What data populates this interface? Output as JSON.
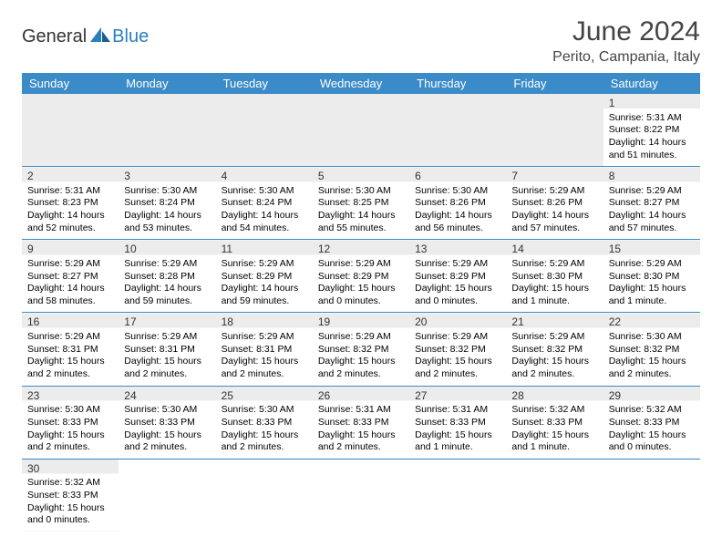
{
  "logo": {
    "general": "General",
    "blue": "Blue"
  },
  "title": "June 2024",
  "location": "Perito, Campania, Italy",
  "colors": {
    "header_bg": "#3b8bc8",
    "header_text": "#ffffff",
    "shade_bg": "#ececec",
    "border": "#3b8bc8",
    "logo_blue": "#2a7fbf",
    "text": "#000000"
  },
  "typography": {
    "title_fontsize": 30,
    "location_fontsize": 16,
    "dayheader_fontsize": 13,
    "daynum_fontsize": 12,
    "body_fontsize": 10.5
  },
  "day_headers": [
    "Sunday",
    "Monday",
    "Tuesday",
    "Wednesday",
    "Thursday",
    "Friday",
    "Saturday"
  ],
  "weeks": [
    [
      {
        "empty": true
      },
      {
        "empty": true
      },
      {
        "empty": true
      },
      {
        "empty": true
      },
      {
        "empty": true
      },
      {
        "empty": true
      },
      {
        "num": "1",
        "sunrise": "Sunrise: 5:31 AM",
        "sunset": "Sunset: 8:22 PM",
        "daylight": "Daylight: 14 hours and 51 minutes."
      }
    ],
    [
      {
        "num": "2",
        "sunrise": "Sunrise: 5:31 AM",
        "sunset": "Sunset: 8:23 PM",
        "daylight": "Daylight: 14 hours and 52 minutes."
      },
      {
        "num": "3",
        "sunrise": "Sunrise: 5:30 AM",
        "sunset": "Sunset: 8:24 PM",
        "daylight": "Daylight: 14 hours and 53 minutes."
      },
      {
        "num": "4",
        "sunrise": "Sunrise: 5:30 AM",
        "sunset": "Sunset: 8:24 PM",
        "daylight": "Daylight: 14 hours and 54 minutes."
      },
      {
        "num": "5",
        "sunrise": "Sunrise: 5:30 AM",
        "sunset": "Sunset: 8:25 PM",
        "daylight": "Daylight: 14 hours and 55 minutes."
      },
      {
        "num": "6",
        "sunrise": "Sunrise: 5:30 AM",
        "sunset": "Sunset: 8:26 PM",
        "daylight": "Daylight: 14 hours and 56 minutes."
      },
      {
        "num": "7",
        "sunrise": "Sunrise: 5:29 AM",
        "sunset": "Sunset: 8:26 PM",
        "daylight": "Daylight: 14 hours and 57 minutes."
      },
      {
        "num": "8",
        "sunrise": "Sunrise: 5:29 AM",
        "sunset": "Sunset: 8:27 PM",
        "daylight": "Daylight: 14 hours and 57 minutes."
      }
    ],
    [
      {
        "num": "9",
        "sunrise": "Sunrise: 5:29 AM",
        "sunset": "Sunset: 8:27 PM",
        "daylight": "Daylight: 14 hours and 58 minutes."
      },
      {
        "num": "10",
        "sunrise": "Sunrise: 5:29 AM",
        "sunset": "Sunset: 8:28 PM",
        "daylight": "Daylight: 14 hours and 59 minutes."
      },
      {
        "num": "11",
        "sunrise": "Sunrise: 5:29 AM",
        "sunset": "Sunset: 8:29 PM",
        "daylight": "Daylight: 14 hours and 59 minutes."
      },
      {
        "num": "12",
        "sunrise": "Sunrise: 5:29 AM",
        "sunset": "Sunset: 8:29 PM",
        "daylight": "Daylight: 15 hours and 0 minutes."
      },
      {
        "num": "13",
        "sunrise": "Sunrise: 5:29 AM",
        "sunset": "Sunset: 8:29 PM",
        "daylight": "Daylight: 15 hours and 0 minutes."
      },
      {
        "num": "14",
        "sunrise": "Sunrise: 5:29 AM",
        "sunset": "Sunset: 8:30 PM",
        "daylight": "Daylight: 15 hours and 1 minute."
      },
      {
        "num": "15",
        "sunrise": "Sunrise: 5:29 AM",
        "sunset": "Sunset: 8:30 PM",
        "daylight": "Daylight: 15 hours and 1 minute."
      }
    ],
    [
      {
        "num": "16",
        "sunrise": "Sunrise: 5:29 AM",
        "sunset": "Sunset: 8:31 PM",
        "daylight": "Daylight: 15 hours and 2 minutes."
      },
      {
        "num": "17",
        "sunrise": "Sunrise: 5:29 AM",
        "sunset": "Sunset: 8:31 PM",
        "daylight": "Daylight: 15 hours and 2 minutes."
      },
      {
        "num": "18",
        "sunrise": "Sunrise: 5:29 AM",
        "sunset": "Sunset: 8:31 PM",
        "daylight": "Daylight: 15 hours and 2 minutes."
      },
      {
        "num": "19",
        "sunrise": "Sunrise: 5:29 AM",
        "sunset": "Sunset: 8:32 PM",
        "daylight": "Daylight: 15 hours and 2 minutes."
      },
      {
        "num": "20",
        "sunrise": "Sunrise: 5:29 AM",
        "sunset": "Sunset: 8:32 PM",
        "daylight": "Daylight: 15 hours and 2 minutes."
      },
      {
        "num": "21",
        "sunrise": "Sunrise: 5:29 AM",
        "sunset": "Sunset: 8:32 PM",
        "daylight": "Daylight: 15 hours and 2 minutes."
      },
      {
        "num": "22",
        "sunrise": "Sunrise: 5:30 AM",
        "sunset": "Sunset: 8:32 PM",
        "daylight": "Daylight: 15 hours and 2 minutes."
      }
    ],
    [
      {
        "num": "23",
        "sunrise": "Sunrise: 5:30 AM",
        "sunset": "Sunset: 8:33 PM",
        "daylight": "Daylight: 15 hours and 2 minutes."
      },
      {
        "num": "24",
        "sunrise": "Sunrise: 5:30 AM",
        "sunset": "Sunset: 8:33 PM",
        "daylight": "Daylight: 15 hours and 2 minutes."
      },
      {
        "num": "25",
        "sunrise": "Sunrise: 5:30 AM",
        "sunset": "Sunset: 8:33 PM",
        "daylight": "Daylight: 15 hours and 2 minutes."
      },
      {
        "num": "26",
        "sunrise": "Sunrise: 5:31 AM",
        "sunset": "Sunset: 8:33 PM",
        "daylight": "Daylight: 15 hours and 2 minutes."
      },
      {
        "num": "27",
        "sunrise": "Sunrise: 5:31 AM",
        "sunset": "Sunset: 8:33 PM",
        "daylight": "Daylight: 15 hours and 1 minute."
      },
      {
        "num": "28",
        "sunrise": "Sunrise: 5:32 AM",
        "sunset": "Sunset: 8:33 PM",
        "daylight": "Daylight: 15 hours and 1 minute."
      },
      {
        "num": "29",
        "sunrise": "Sunrise: 5:32 AM",
        "sunset": "Sunset: 8:33 PM",
        "daylight": "Daylight: 15 hours and 0 minutes."
      }
    ],
    [
      {
        "num": "30",
        "sunrise": "Sunrise: 5:32 AM",
        "sunset": "Sunset: 8:33 PM",
        "daylight": "Daylight: 15 hours and 0 minutes."
      },
      {
        "empty": true,
        "trailing": true
      },
      {
        "empty": true,
        "trailing": true
      },
      {
        "empty": true,
        "trailing": true
      },
      {
        "empty": true,
        "trailing": true
      },
      {
        "empty": true,
        "trailing": true
      },
      {
        "empty": true,
        "trailing": true
      }
    ]
  ]
}
